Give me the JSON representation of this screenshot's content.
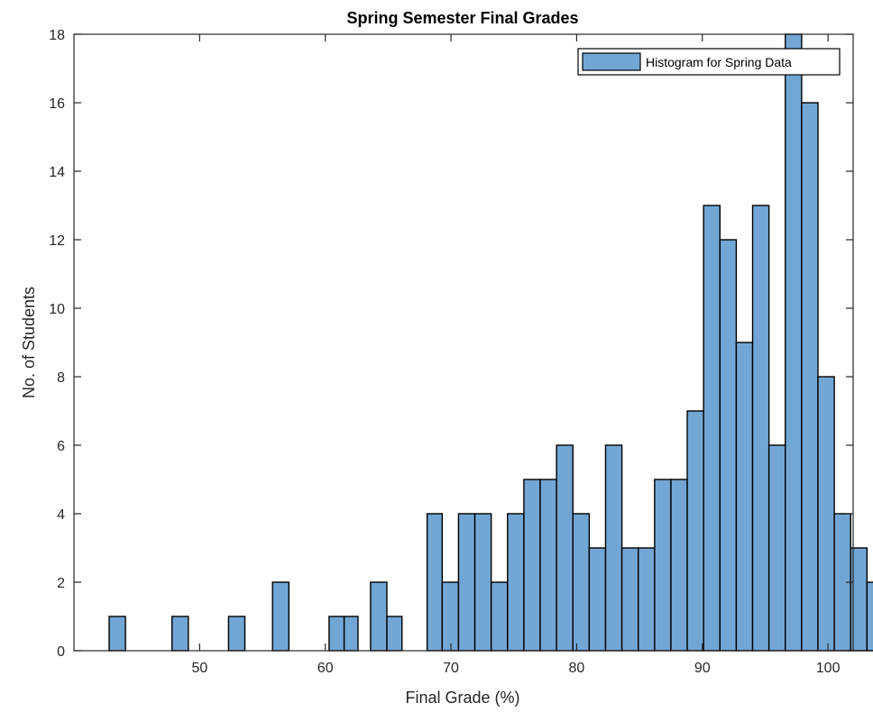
{
  "chart_data": {
    "type": "bar",
    "title": "Spring Semester Final Grades",
    "xlabel": "Final Grade (%)",
    "ylabel": "No. of Students",
    "xlim": [
      40,
      102
    ],
    "ylim": [
      0,
      18
    ],
    "xticks": [
      50,
      60,
      70,
      80,
      90,
      100
    ],
    "yticks": [
      0,
      2,
      4,
      6,
      8,
      10,
      12,
      14,
      16,
      18
    ],
    "bin_width": 1.3,
    "grid": false,
    "legend_position": "top-right",
    "bar_color": "#72a6d4",
    "edge_color": "#000000",
    "series": [
      {
        "name": "Histogram for Spring Data",
        "bins": [
          {
            "x0": 42.8,
            "x1": 44.1,
            "count": 1
          },
          {
            "x0": 47.8,
            "x1": 49.1,
            "count": 1
          },
          {
            "x0": 52.3,
            "x1": 53.6,
            "count": 1
          },
          {
            "x0": 55.8,
            "x1": 57.1,
            "count": 2
          },
          {
            "x0": 60.3,
            "x1": 61.5,
            "count": 1
          },
          {
            "x0": 61.5,
            "x1": 62.6,
            "count": 1
          },
          {
            "x0": 63.6,
            "x1": 64.9,
            "count": 2
          },
          {
            "x0": 64.9,
            "x1": 66.1,
            "count": 1
          },
          {
            "x0": 68.1,
            "x1": 69.3,
            "count": 4
          },
          {
            "x0": 69.3,
            "x1": 70.6,
            "count": 2
          },
          {
            "x0": 70.6,
            "x1": 71.9,
            "count": 4
          },
          {
            "x0": 71.9,
            "x1": 73.2,
            "count": 4
          },
          {
            "x0": 73.2,
            "x1": 74.5,
            "count": 2
          },
          {
            "x0": 74.5,
            "x1": 75.8,
            "count": 4
          },
          {
            "x0": 75.8,
            "x1": 77.1,
            "count": 5
          },
          {
            "x0": 77.1,
            "x1": 78.4,
            "count": 5
          },
          {
            "x0": 78.4,
            "x1": 79.7,
            "count": 6
          },
          {
            "x0": 79.7,
            "x1": 81.0,
            "count": 4
          },
          {
            "x0": 81.0,
            "x1": 82.3,
            "count": 3
          },
          {
            "x0": 82.3,
            "x1": 83.6,
            "count": 6
          },
          {
            "x0": 83.6,
            "x1": 84.9,
            "count": 3
          },
          {
            "x0": 84.9,
            "x1": 86.2,
            "count": 3
          },
          {
            "x0": 86.2,
            "x1": 87.5,
            "count": 5
          },
          {
            "x0": 87.5,
            "x1": 88.8,
            "count": 5
          },
          {
            "x0": 88.8,
            "x1": 90.1,
            "count": 7
          },
          {
            "x0": 90.1,
            "x1": 91.4,
            "count": 13
          },
          {
            "x0": 91.4,
            "x1": 92.7,
            "count": 12
          },
          {
            "x0": 92.7,
            "x1": 94.0,
            "count": 9
          },
          {
            "x0": 94.0,
            "x1": 95.3,
            "count": 13
          },
          {
            "x0": 95.3,
            "x1": 96.6,
            "count": 6
          },
          {
            "x0": 96.6,
            "x1": 97.9,
            "count": 18
          },
          {
            "x0": 97.9,
            "x1": 99.2,
            "count": 16
          },
          {
            "x0": 99.2,
            "x1": 100.5,
            "count": 8
          },
          {
            "x0": 100.5,
            "x1": 101.8,
            "count": 4
          },
          {
            "x0": 101.8,
            "x1": 103.1,
            "count": 3
          },
          {
            "x0": 103.1,
            "x1": 104.4,
            "count": 2
          }
        ]
      }
    ]
  }
}
